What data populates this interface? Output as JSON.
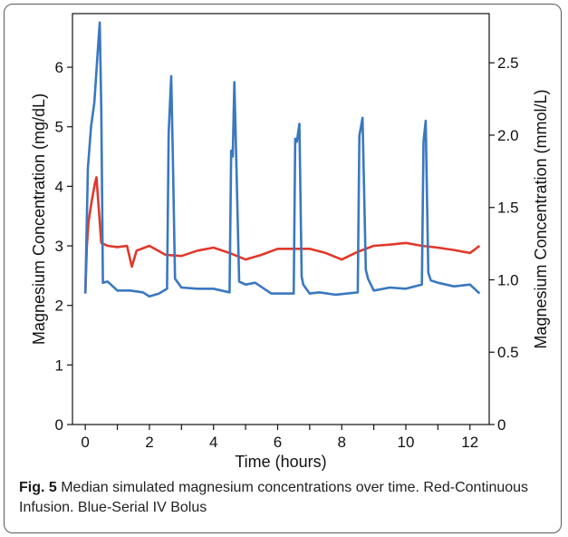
{
  "chart_data": {
    "type": "line",
    "title": "",
    "xlabel": "Time (hours)",
    "ylabel": "Magnesium Concentration (mg/dL)",
    "y2label": "Magnesium Concentration (mmol/L)",
    "xlim": [
      -0.4,
      12.6
    ],
    "ylim": [
      0,
      6.9
    ],
    "y2lim": [
      0,
      2.84
    ],
    "x_ticks": [
      0,
      2,
      4,
      6,
      8,
      10,
      12
    ],
    "x_minor_ticks": [
      1,
      3,
      5,
      7,
      9,
      11
    ],
    "y_ticks": [
      0,
      1,
      2,
      3,
      4,
      5,
      6
    ],
    "y2_ticks": [
      "0",
      "0.5",
      "1.0",
      "1.5",
      "2.0",
      "2.5"
    ],
    "grid": false,
    "series": [
      {
        "color": "#e0392b",
        "x": [
          0,
          0.05,
          0.1,
          0.2,
          0.3,
          0.35,
          0.5,
          0.7,
          1.0,
          1.3,
          1.45,
          1.6,
          2.0,
          2.5,
          3.0,
          3.5,
          4.0,
          4.5,
          5.0,
          5.5,
          6.0,
          6.5,
          7.0,
          7.5,
          8.0,
          8.5,
          9.0,
          9.5,
          10.0,
          10.5,
          11.0,
          11.5,
          12.0,
          12.3
        ],
        "y": [
          2.2,
          3.0,
          3.4,
          3.75,
          4.05,
          4.15,
          3.05,
          3.0,
          2.98,
          3.0,
          2.65,
          2.92,
          3.0,
          2.85,
          2.83,
          2.92,
          2.97,
          2.88,
          2.77,
          2.85,
          2.95,
          2.95,
          2.95,
          2.88,
          2.77,
          2.9,
          3.0,
          3.02,
          3.05,
          3.0,
          2.97,
          2.93,
          2.88,
          3.0
        ]
      },
      {
        "color": "#3a78c0",
        "x": [
          0,
          0.08,
          0.18,
          0.28,
          0.38,
          0.45,
          0.5,
          0.55,
          0.7,
          1.0,
          1.4,
          1.8,
          2.0,
          2.3,
          2.55,
          2.6,
          2.68,
          2.73,
          2.8,
          3.0,
          3.5,
          4.0,
          4.5,
          4.55,
          4.6,
          4.65,
          4.72,
          4.8,
          5.0,
          5.3,
          5.8,
          6.5,
          6.55,
          6.6,
          6.68,
          6.75,
          6.8,
          7.0,
          7.3,
          7.8,
          8.5,
          8.55,
          8.65,
          8.75,
          8.82,
          9.0,
          9.5,
          10.0,
          10.5,
          10.55,
          10.62,
          10.7,
          10.78,
          11.0,
          11.5,
          12.0,
          12.3
        ],
        "y": [
          2.2,
          4.3,
          5.0,
          5.4,
          6.2,
          6.75,
          5.3,
          2.38,
          2.4,
          2.25,
          2.25,
          2.22,
          2.15,
          2.2,
          2.28,
          4.9,
          5.85,
          4.5,
          2.45,
          2.3,
          2.28,
          2.28,
          2.22,
          4.6,
          4.5,
          5.75,
          4.2,
          2.4,
          2.35,
          2.38,
          2.2,
          2.2,
          4.8,
          4.75,
          5.05,
          2.48,
          2.35,
          2.2,
          2.22,
          2.18,
          2.22,
          4.85,
          5.15,
          2.6,
          2.45,
          2.25,
          2.3,
          2.28,
          2.35,
          4.75,
          5.1,
          2.55,
          2.42,
          2.38,
          2.32,
          2.35,
          2.2
        ]
      }
    ]
  },
  "caption": {
    "label": "Fig. 5",
    "text": " Median simulated magnesium concentrations over time. Red-Continuous Infusion. Blue-Serial IV Bolus"
  }
}
